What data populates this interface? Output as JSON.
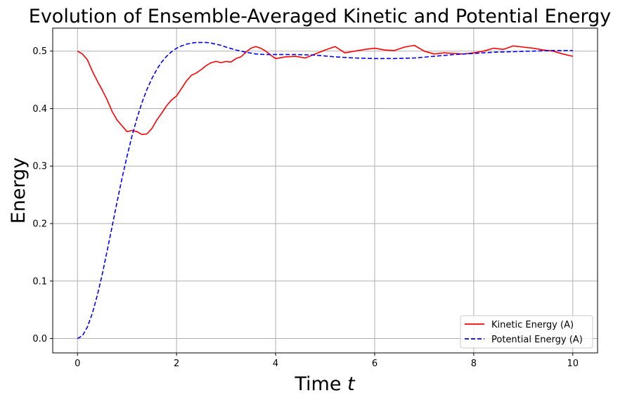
{
  "chart_data": {
    "type": "line",
    "title": "Evolution of Ensemble-Averaged Kinetic and Potential Energy",
    "xlabel_main": "Time ",
    "xlabel_var": "t",
    "ylabel": "Energy",
    "xlim": [
      -0.5,
      10.5
    ],
    "ylim": [
      -0.025,
      0.54
    ],
    "xticks": [
      0,
      2,
      4,
      6,
      8,
      10
    ],
    "yticks": [
      0.0,
      0.1,
      0.2,
      0.3,
      0.4,
      0.5
    ],
    "grid": true,
    "legend_position": "lower-right",
    "series": [
      {
        "name": "Kinetic Energy (A)",
        "color": "#ff0000",
        "style": "solid",
        "x": [
          0,
          0.1,
          0.2,
          0.3,
          0.4,
          0.5,
          0.6,
          0.7,
          0.8,
          0.9,
          1.0,
          1.1,
          1.2,
          1.3,
          1.4,
          1.5,
          1.6,
          1.7,
          1.8,
          1.9,
          2.0,
          2.1,
          2.2,
          2.3,
          2.4,
          2.5,
          2.6,
          2.7,
          2.8,
          2.9,
          3.0,
          3.1,
          3.2,
          3.3,
          3.4,
          3.5,
          3.6,
          3.7,
          3.8,
          3.9,
          4.0,
          4.2,
          4.4,
          4.6,
          4.8,
          5.0,
          5.2,
          5.4,
          5.6,
          5.8,
          6.0,
          6.2,
          6.4,
          6.6,
          6.8,
          7.0,
          7.2,
          7.4,
          7.6,
          7.8,
          8.0,
          8.2,
          8.4,
          8.6,
          8.8,
          9.0,
          9.2,
          9.4,
          9.6,
          9.8,
          10.0
        ],
        "y": [
          0.5,
          0.495,
          0.485,
          0.465,
          0.448,
          0.432,
          0.415,
          0.395,
          0.38,
          0.37,
          0.36,
          0.362,
          0.36,
          0.355,
          0.356,
          0.365,
          0.38,
          0.392,
          0.405,
          0.415,
          0.422,
          0.435,
          0.448,
          0.458,
          0.462,
          0.468,
          0.475,
          0.48,
          0.482,
          0.48,
          0.482,
          0.481,
          0.487,
          0.49,
          0.498,
          0.505,
          0.508,
          0.505,
          0.5,
          0.493,
          0.487,
          0.49,
          0.491,
          0.488,
          0.495,
          0.502,
          0.508,
          0.497,
          0.5,
          0.503,
          0.505,
          0.502,
          0.501,
          0.507,
          0.51,
          0.5,
          0.495,
          0.497,
          0.496,
          0.495,
          0.497,
          0.5,
          0.505,
          0.503,
          0.509,
          0.507,
          0.505,
          0.502,
          0.5,
          0.495,
          0.491
        ]
      },
      {
        "name": "Potential Energy (A)",
        "color": "#0000ff",
        "style": "dashed",
        "x": [
          0,
          0.1,
          0.2,
          0.3,
          0.4,
          0.5,
          0.6,
          0.7,
          0.8,
          0.9,
          1.0,
          1.1,
          1.2,
          1.3,
          1.4,
          1.5,
          1.6,
          1.7,
          1.8,
          1.9,
          2.0,
          2.1,
          2.2,
          2.3,
          2.4,
          2.5,
          2.6,
          2.7,
          2.8,
          2.9,
          3.0,
          3.2,
          3.4,
          3.6,
          3.8,
          4.0,
          4.4,
          4.8,
          5.2,
          5.6,
          6.0,
          6.4,
          6.8,
          7.2,
          7.6,
          8.0,
          8.4,
          8.8,
          9.2,
          9.6,
          10.0
        ],
        "y": [
          0.0,
          0.005,
          0.02,
          0.044,
          0.075,
          0.112,
          0.153,
          0.195,
          0.238,
          0.279,
          0.317,
          0.352,
          0.383,
          0.41,
          0.433,
          0.452,
          0.468,
          0.481,
          0.491,
          0.499,
          0.505,
          0.509,
          0.512,
          0.514,
          0.515,
          0.515,
          0.515,
          0.514,
          0.512,
          0.51,
          0.507,
          0.502,
          0.498,
          0.495,
          0.494,
          0.494,
          0.494,
          0.493,
          0.49,
          0.488,
          0.487,
          0.487,
          0.488,
          0.491,
          0.494,
          0.496,
          0.498,
          0.499,
          0.5,
          0.501,
          0.501
        ]
      }
    ]
  }
}
